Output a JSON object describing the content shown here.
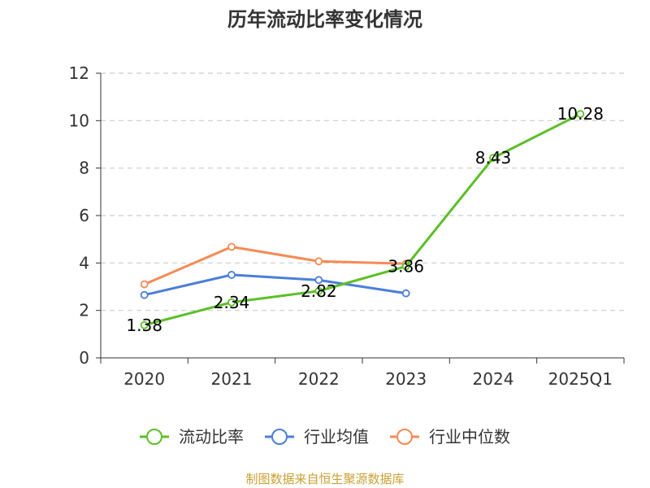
{
  "chart_data": {
    "type": "line",
    "title": "历年流动比率变化情况",
    "categories": [
      "2020",
      "2021",
      "2022",
      "2023",
      "2024",
      "2025Q1"
    ],
    "ylim": [
      0,
      12
    ],
    "yticks": [
      0,
      2,
      4,
      6,
      8,
      10,
      12
    ],
    "ytick_labels": [
      "0",
      "2",
      "4",
      "6",
      "8",
      "10",
      "12"
    ],
    "xlabel": "",
    "ylabel": "",
    "grid": "horizontal-dashed",
    "legend_position": "bottom",
    "series": [
      {
        "name": "流动比率",
        "color": "#5cbf27",
        "values": [
          1.38,
          2.34,
          2.82,
          3.86,
          8.43,
          10.28
        ],
        "labels": [
          "1.38",
          "2.34",
          "2.82",
          "3.86",
          "8.43",
          "10.28"
        ]
      },
      {
        "name": "行业均值",
        "color": "#4a7ed9",
        "values": [
          2.65,
          3.5,
          3.28,
          2.72,
          null,
          null
        ]
      },
      {
        "name": "行业中位数",
        "color": "#f58a55",
        "values": [
          3.1,
          4.68,
          4.07,
          3.97,
          null,
          null
        ]
      }
    ]
  },
  "source_text": "制图数据来自恒生聚源数据库"
}
